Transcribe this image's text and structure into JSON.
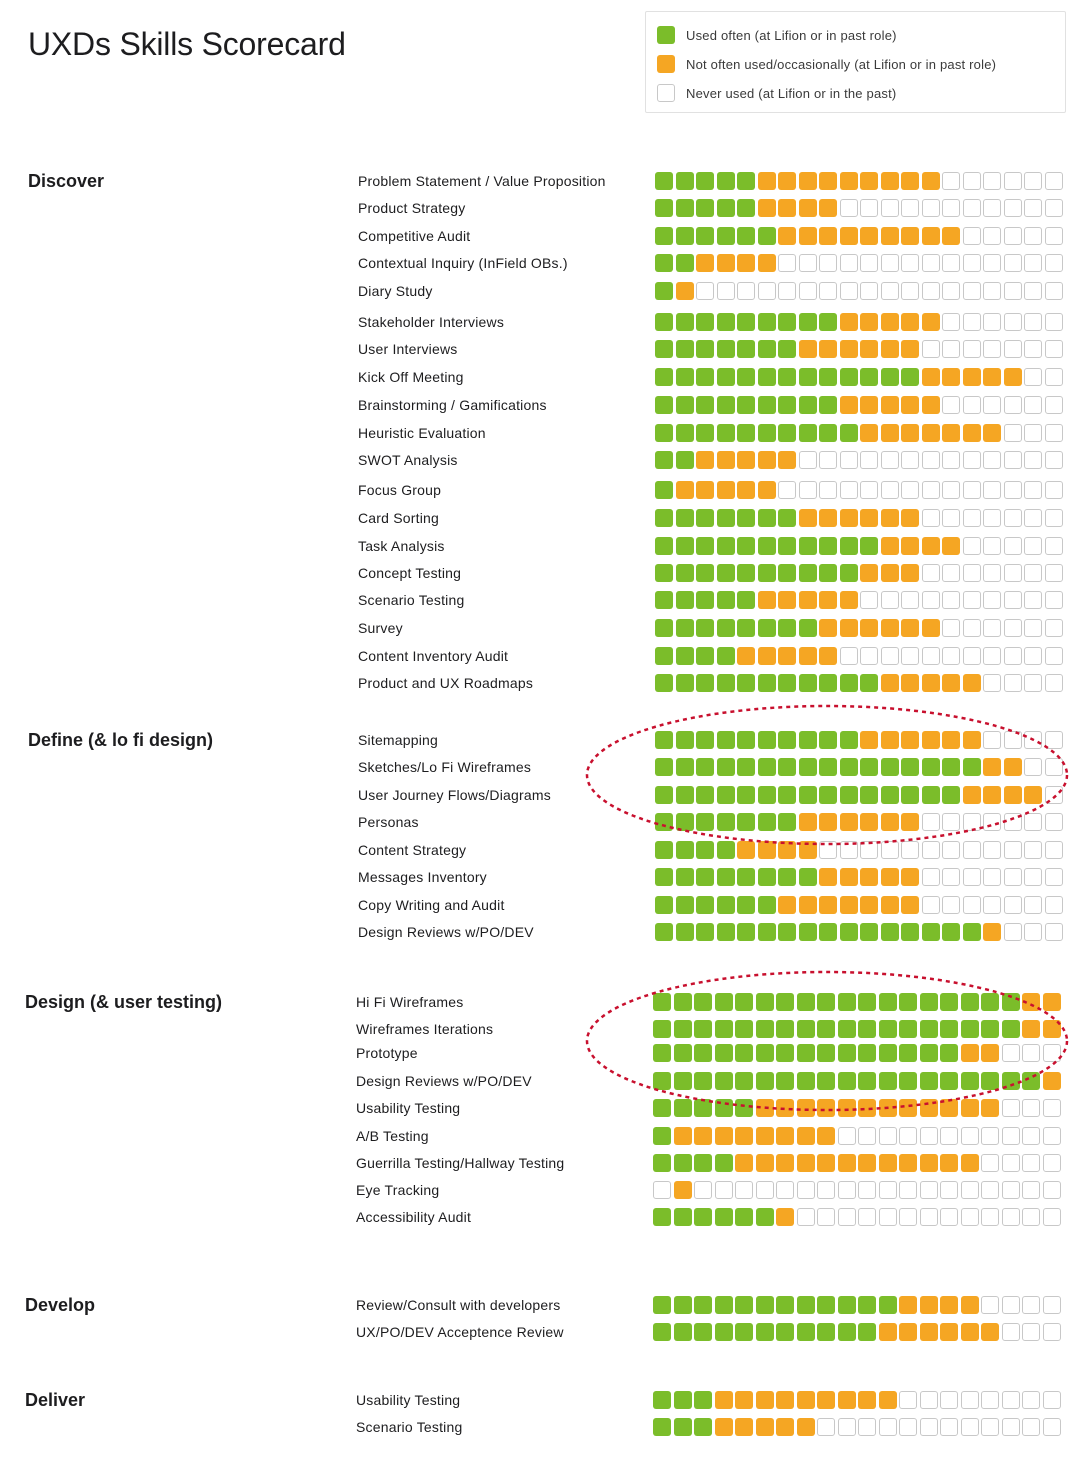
{
  "title": "UXDs Skills Scorecard",
  "legend": [
    {
      "key": "g",
      "color": "#7bbd2a",
      "label": "Used often (at Lifion or in past role)"
    },
    {
      "key": "o",
      "color": "#f5a623",
      "label": "Not often used/occasionally (at Lifion or in past role)"
    },
    {
      "key": "w",
      "color": "#ffffff",
      "label": "Never used (at Lifion or in the past)"
    }
  ],
  "annotation_colors": {
    "highlight_ellipse": "#c8102e"
  },
  "sections": [
    {
      "title": "Discover",
      "skills": [
        {
          "label": "Problem Statement / Value Proposition",
          "green": 5,
          "orange": 9
        },
        {
          "label": "Product Strategy",
          "green": 5,
          "orange": 4
        },
        {
          "label": "Competitive Audit",
          "green": 6,
          "orange": 9
        },
        {
          "label": "Contextual Inquiry (InField OBs.)",
          "green": 2,
          "orange": 4
        },
        {
          "label": "Diary Study",
          "green": 1,
          "orange": 1
        },
        {
          "label": "Stakeholder Interviews",
          "green": 9,
          "orange": 5
        },
        {
          "label": "User Interviews",
          "green": 7,
          "orange": 6
        },
        {
          "label": "Kick Off Meeting",
          "green": 13,
          "orange": 5
        },
        {
          "label": "Brainstorming / Gamifications",
          "green": 9,
          "orange": 5
        },
        {
          "label": "Heuristic Evaluation",
          "green": 10,
          "orange": 7
        },
        {
          "label": "SWOT Analysis",
          "green": 2,
          "orange": 5
        },
        {
          "label": "Focus Group",
          "green": 1,
          "orange": 5
        },
        {
          "label": "Card Sorting",
          "green": 7,
          "orange": 6
        },
        {
          "label": "Task Analysis",
          "green": 11,
          "orange": 4
        },
        {
          "label": "Concept Testing",
          "green": 10,
          "orange": 3
        },
        {
          "label": "Scenario Testing",
          "green": 5,
          "orange": 5
        },
        {
          "label": "Survey",
          "green": 8,
          "orange": 6
        },
        {
          "label": "Content Inventory Audit",
          "green": 4,
          "orange": 5
        },
        {
          "label": "Product and UX Roadmaps",
          "green": 11,
          "orange": 5
        }
      ]
    },
    {
      "title": "Define (& lo fi design)",
      "skills": [
        {
          "label": "Sitemapping",
          "green": 10,
          "orange": 6
        },
        {
          "label": "Sketches/Lo Fi Wireframes",
          "green": 16,
          "orange": 2
        },
        {
          "label": "User Journey Flows/Diagrams",
          "green": 15,
          "orange": 4
        },
        {
          "label": "Personas",
          "green": 7,
          "orange": 6
        },
        {
          "label": "Content Strategy",
          "green": 4,
          "orange": 4
        },
        {
          "label": "Messages Inventory",
          "green": 8,
          "orange": 5
        },
        {
          "label": "Copy Writing and Audit",
          "green": 6,
          "orange": 7
        },
        {
          "label": "Design Reviews w/PO/DEV",
          "green": 16,
          "orange": 1
        }
      ]
    },
    {
      "title": "Design (& user testing)",
      "skills": [
        {
          "label": "Hi Fi Wireframes",
          "green": 18,
          "orange": 2
        },
        {
          "label": "Wireframes Iterations",
          "green": 18,
          "orange": 2
        },
        {
          "label": "Prototype",
          "green": 15,
          "orange": 2
        },
        {
          "label": "Design Reviews w/PO/DEV",
          "green": 19,
          "orange": 1
        },
        {
          "label": "Usability Testing",
          "green": 5,
          "orange": 12
        },
        {
          "label": "A/B Testing",
          "green": 1,
          "orange": 8
        },
        {
          "label": "Guerrilla Testing/Hallway Testing",
          "green": 4,
          "orange": 12
        },
        {
          "label": "Eye Tracking",
          "green": 0,
          "orange": 1,
          "lead_blank": 1
        },
        {
          "label": "Accessibility Audit",
          "green": 6,
          "orange": 1
        }
      ]
    },
    {
      "title": "Develop",
      "skills": [
        {
          "label": "Review/Consult with developers",
          "green": 12,
          "orange": 4
        },
        {
          "label": "UX/PO/DEV Acceptence Review",
          "green": 11,
          "orange": 6
        }
      ]
    },
    {
      "title": "Deliver",
      "skills": [
        {
          "label": "Usability Testing",
          "green": 3,
          "orange": 9
        },
        {
          "label": "Scenario Testing",
          "green": 3,
          "orange": 5
        }
      ]
    }
  ]
}
